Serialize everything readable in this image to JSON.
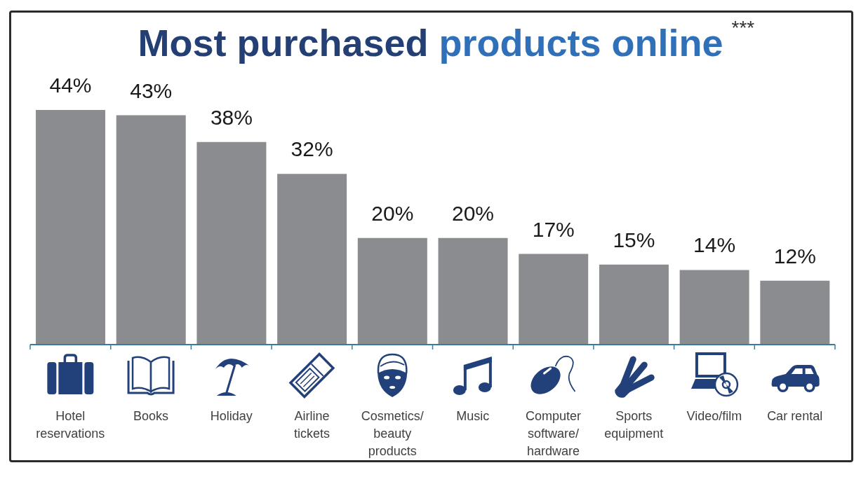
{
  "chart_data": {
    "type": "bar",
    "title": "Most purchased products online",
    "annotations": [
      "***"
    ],
    "categories": [
      "Hotel reservations",
      "Books",
      "Holiday",
      "Airline tickets",
      "Cosmetics/ beauty products",
      "Music",
      "Computer software/ hardware",
      "Sports equipment",
      "Video/film",
      "Car rental"
    ],
    "values": [
      44,
      43,
      38,
      32,
      20,
      20,
      17,
      15,
      14,
      12
    ],
    "value_labels": [
      "44%",
      "43%",
      "38%",
      "32%",
      "20%",
      "20%",
      "17%",
      "15%",
      "14%",
      "12%"
    ],
    "color": "#8a8c8f"
  }
}
